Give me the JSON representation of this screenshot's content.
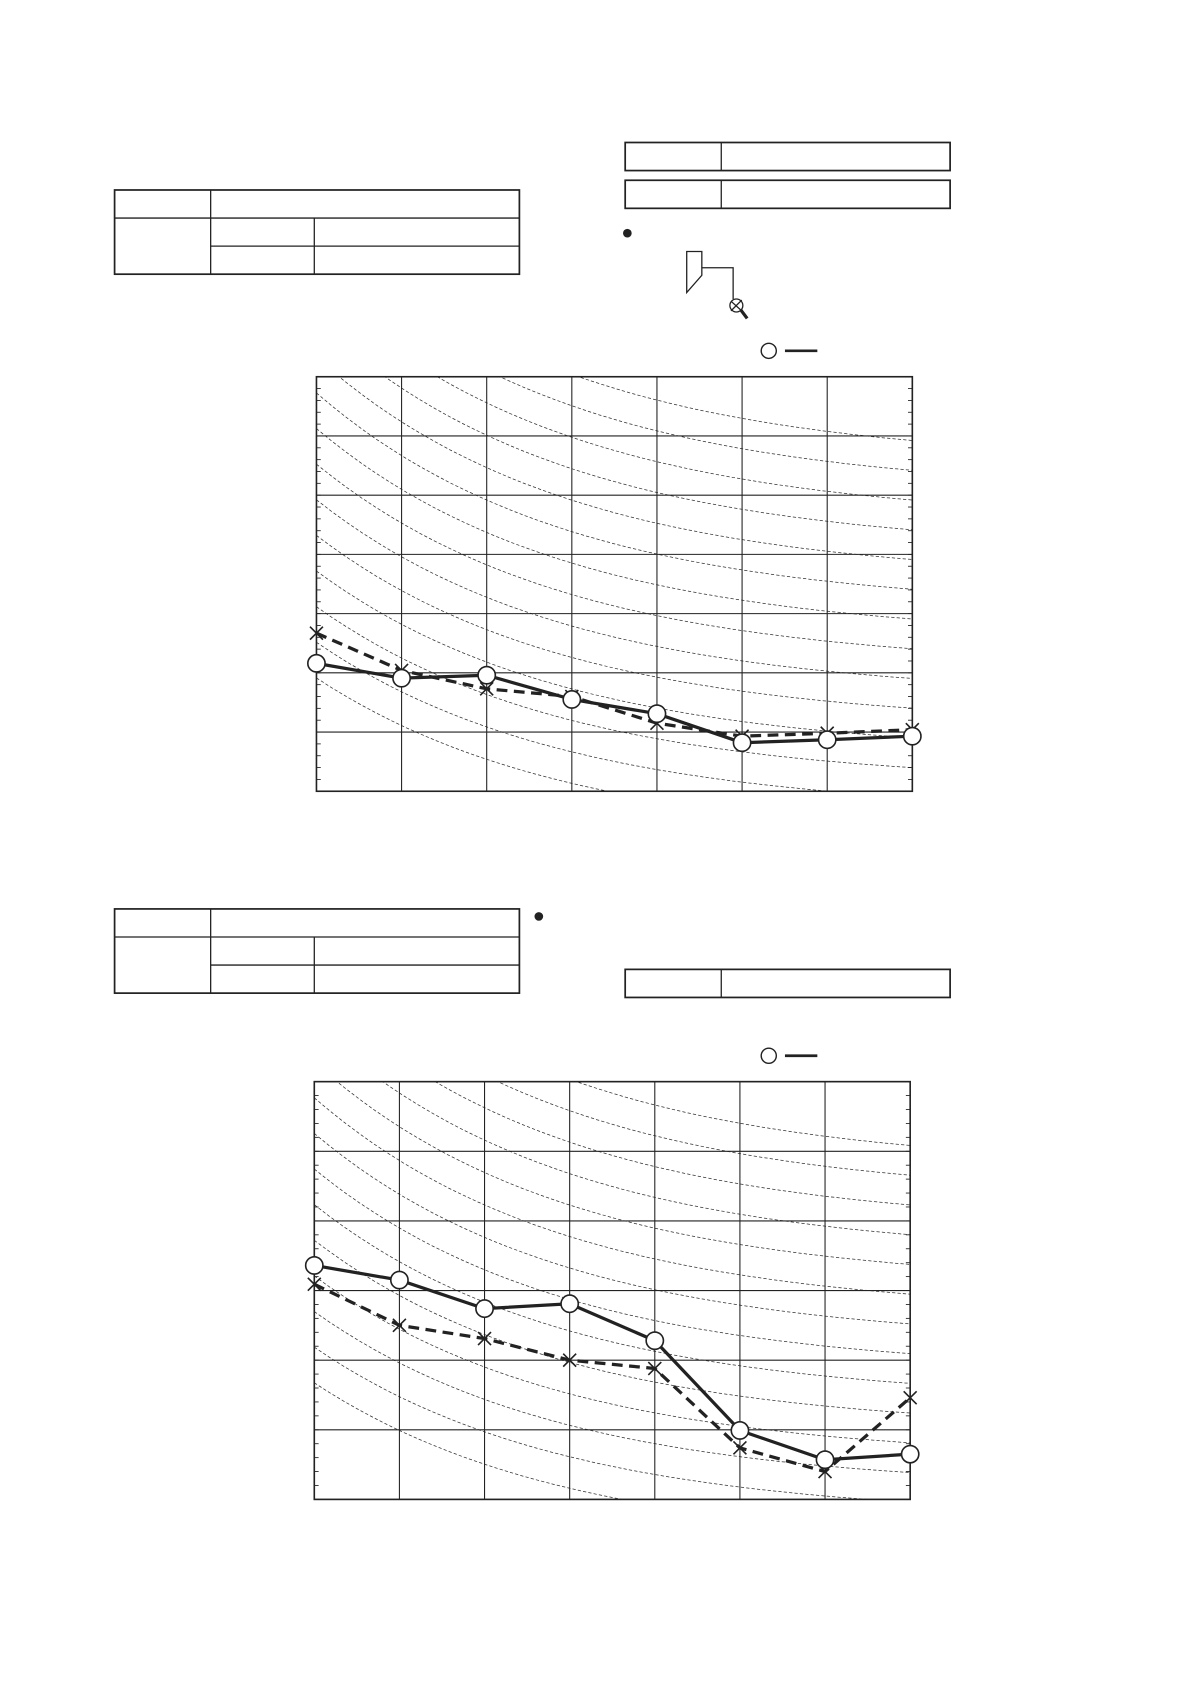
{
  "chart_data": [
    {
      "type": "line",
      "categories": [
        null,
        null,
        null,
        null,
        null,
        null,
        null,
        null
      ],
      "ylim": [
        0,
        7
      ],
      "yticks": [
        0,
        1,
        2,
        3,
        4,
        5,
        6,
        7
      ],
      "grid": true,
      "series": [
        {
          "color": "#222222",
          "line_style": "solid",
          "marker": "circle",
          "values": [
            2.16,
            1.91,
            1.96,
            1.55,
            1.31,
            0.82,
            0.87,
            0.93
          ]
        },
        {
          "color": "#222222",
          "line_style": "dashed",
          "marker": "x",
          "values": [
            2.67,
            2.04,
            1.73,
            1.6,
            1.15,
            0.93,
            0.98,
            1.04
          ]
        }
      ]
    },
    {
      "type": "line",
      "categories": [
        null,
        null,
        null,
        null,
        null,
        null,
        null,
        null
      ],
      "ylim": [
        0,
        6
      ],
      "yticks": [
        0,
        1,
        2,
        3,
        4,
        5,
        6
      ],
      "grid": true,
      "series": [
        {
          "color": "#222222",
          "line_style": "solid",
          "marker": "circle",
          "values": [
            3.36,
            3.15,
            2.74,
            2.81,
            2.28,
            0.99,
            0.57,
            0.65
          ]
        },
        {
          "color": "#222222",
          "line_style": "dashed",
          "marker": "x",
          "values": [
            3.09,
            2.5,
            2.31,
            2.0,
            1.88,
            0.74,
            0.4,
            1.46
          ]
        }
      ]
    }
  ]
}
